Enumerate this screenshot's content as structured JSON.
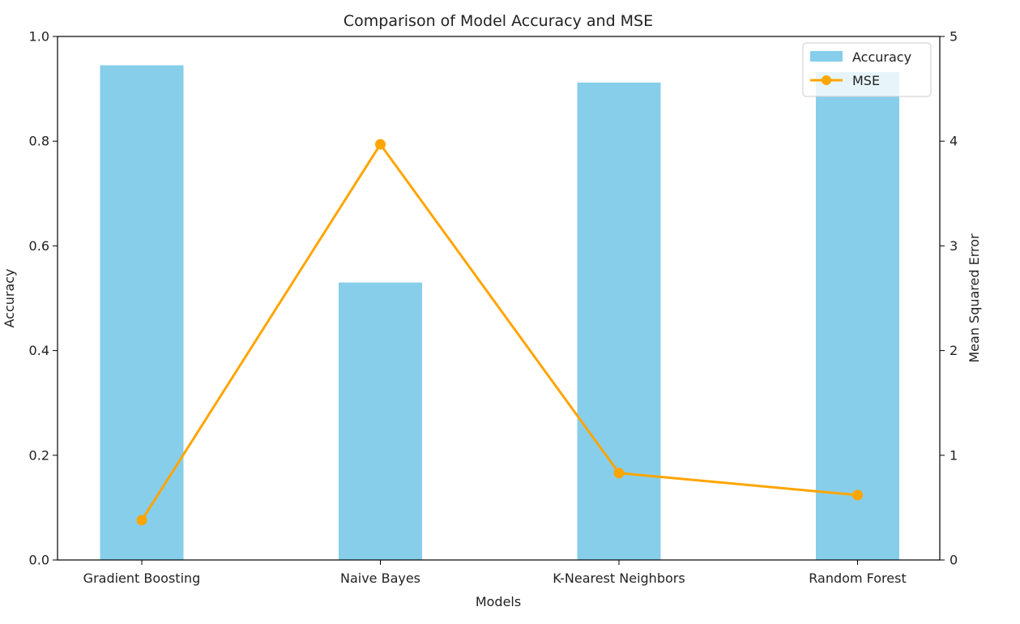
{
  "chart_data": {
    "type": "bar",
    "title": "Comparison of Model Accuracy and MSE",
    "xlabel": "Models",
    "ylabel": "Accuracy",
    "y2label": "Mean Squared Error",
    "categories": [
      "Gradient Boosting",
      "Naive Bayes",
      "K-Nearest Neighbors",
      "Random Forest"
    ],
    "ylim": [
      0,
      1.0
    ],
    "y2lim": [
      0,
      5
    ],
    "yticks": [
      "0.0",
      "0.2",
      "0.4",
      "0.6",
      "0.8",
      "1.0"
    ],
    "y2ticks": [
      "0",
      "1",
      "2",
      "3",
      "4",
      "5"
    ],
    "series": [
      {
        "name": "Accuracy",
        "kind": "bar",
        "axis": "left",
        "color": "#87ceeb",
        "values": [
          0.945,
          0.53,
          0.912,
          0.932
        ]
      },
      {
        "name": "MSE",
        "kind": "line",
        "axis": "right",
        "color": "#ffa500",
        "marker": "circle",
        "values": [
          0.38,
          3.97,
          0.83,
          0.62
        ]
      }
    ],
    "legend": {
      "position": "top-right",
      "entries": [
        "Accuracy",
        "MSE"
      ]
    },
    "grid": false
  }
}
